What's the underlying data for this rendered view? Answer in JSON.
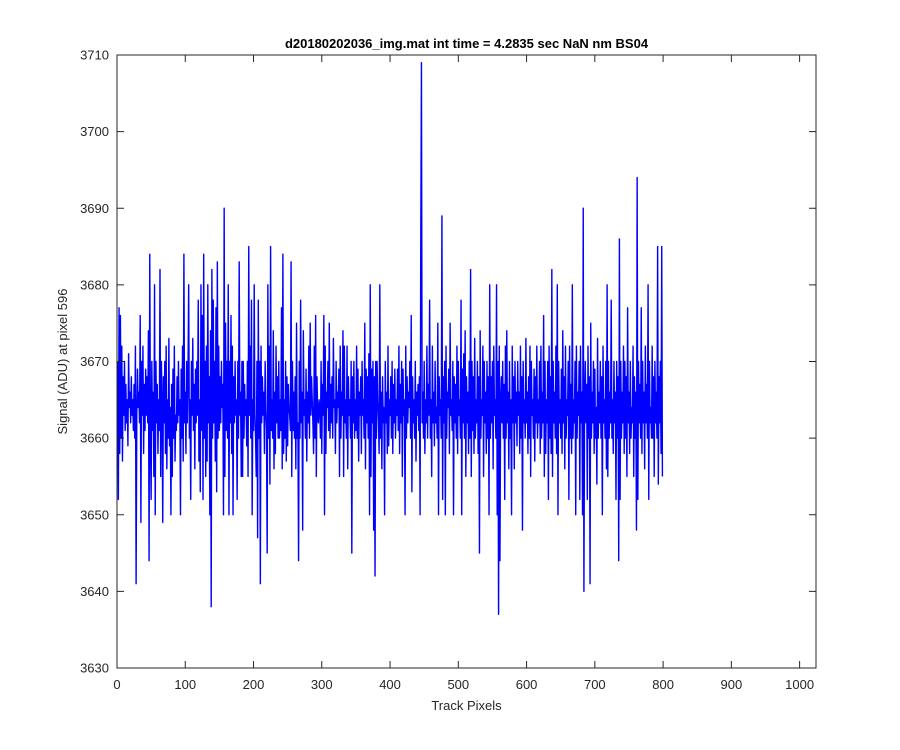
{
  "chart_data": {
    "type": "line",
    "title": "d20180202036_img.mat int time = 4.2835 sec  NaN nm BS04",
    "xlabel": "Track Pixels",
    "ylabel": "Signal (ADU) at pixel 596",
    "xlim": [
      0,
      1024
    ],
    "ylim": [
      3630,
      3710
    ],
    "x_ticks": [
      0,
      100,
      200,
      300,
      400,
      500,
      600,
      700,
      800,
      900,
      1000
    ],
    "y_ticks": [
      3630,
      3640,
      3650,
      3660,
      3670,
      3680,
      3690,
      3700,
      3710
    ],
    "grid": false,
    "line_color": "#0000ff",
    "series": [
      {
        "x_start": 1,
        "x_step": 1,
        "n_points": 1024,
        "values": [
          3670,
          3652,
          3677,
          3658,
          3676,
          3660,
          3672,
          3657,
          3668,
          3663,
          3670,
          3661,
          3667,
          3662,
          3665,
          3659,
          3671,
          3664,
          3666,
          3662,
          3668,
          3663,
          3665,
          3661,
          3667,
          3660,
          3672,
          3641,
          3663,
          3669,
          3664,
          3666,
          3662,
          3676,
          3649,
          3670,
          3663,
          3672,
          3658,
          3667,
          3661,
          3669,
          3663,
          3668,
          3662,
          3674,
          3644,
          3684,
          3660,
          3652,
          3670,
          3661,
          3666,
          3655,
          3680,
          3650,
          3670,
          3662,
          3667,
          3658,
          3665,
          3661,
          3682,
          3655,
          3670,
          3665,
          3649,
          3668,
          3662,
          3670,
          3658,
          3672,
          3656,
          3665,
          3660,
          3673,
          3659,
          3664,
          3650,
          3667,
          3655,
          3669,
          3660,
          3672,
          3657,
          3663,
          3661,
          3668,
          3662,
          3670,
          3663,
          3665,
          3650,
          3669,
          3660,
          3672,
          3657,
          3684,
          3662,
          3666,
          3658,
          3670,
          3662,
          3668,
          3680,
          3660,
          3665,
          3652,
          3670,
          3663,
          3673,
          3661,
          3667,
          3656,
          3669,
          3662,
          3670,
          3663,
          3678,
          3657,
          3665,
          3653,
          3680,
          3661,
          3676,
          3652,
          3684,
          3660,
          3670,
          3655,
          3672,
          3657,
          3680,
          3662,
          3668,
          3650,
          3674,
          3638,
          3682,
          3660,
          3678,
          3662,
          3670,
          3657,
          3677,
          3653,
          3683,
          3660,
          3672,
          3661,
          3668,
          3662,
          3670,
          3664,
          3667,
          3650,
          3690,
          3655,
          3675,
          3661,
          3670,
          3660,
          3680,
          3650,
          3670,
          3662,
          3676,
          3658,
          3672,
          3650,
          3668,
          3662,
          3670,
          3663,
          3665,
          3652,
          3670,
          3660,
          3683,
          3663,
          3666,
          3655,
          3670,
          3655,
          3670,
          3660,
          3667,
          3663,
          3665,
          3659,
          3670,
          3655,
          3685,
          3663,
          3672,
          3660,
          3678,
          3650,
          3665,
          3661,
          3680,
          3663,
          3660,
          3655,
          3670,
          3647,
          3678,
          3660,
          3670,
          3641,
          3672,
          3662,
          3668,
          3663,
          3666,
          3658,
          3670,
          3664,
          3661,
          3645,
          3680,
          3660,
          3672,
          3654,
          3685,
          3661,
          3665,
          3660,
          3674,
          3656,
          3666,
          3658,
          3672,
          3662,
          3668,
          3660,
          3670,
          3660,
          3665,
          3661,
          3677,
          3656,
          3684,
          3658,
          3665,
          3660,
          3670,
          3657,
          3668,
          3659,
          3667,
          3664,
          3663,
          3661,
          3683,
          3655,
          3670,
          3661,
          3666,
          3660,
          3668,
          3656,
          3675,
          3660,
          3662,
          3644,
          3670,
          3660,
          3678,
          3662,
          3666,
          3648,
          3674,
          3663,
          3665,
          3660,
          3669,
          3657,
          3666,
          3662,
          3672,
          3660,
          3675,
          3663,
          3668,
          3665,
          3662,
          3658,
          3672,
          3660,
          3676,
          3655,
          3668,
          3663,
          3662,
          3665,
          3664,
          3660,
          3670,
          3658,
          3667,
          3663,
          3676,
          3650,
          3672,
          3658,
          3666,
          3664,
          3670,
          3661,
          3675,
          3660,
          3667,
          3662,
          3668,
          3660,
          3673,
          3664,
          3665,
          3658,
          3670,
          3662,
          3666,
          3664,
          3669,
          3655,
          3672,
          3660,
          3666,
          3663,
          3674,
          3655,
          3672,
          3662,
          3665,
          3660,
          3672,
          3656,
          3668,
          3663,
          3665,
          3660,
          3670,
          3645,
          3668,
          3662,
          3670,
          3660,
          3665,
          3661,
          3672,
          3660,
          3669,
          3657,
          3666,
          3663,
          3668,
          3658,
          3670,
          3663,
          3665,
          3660,
          3675,
          3656,
          3669,
          3662,
          3668,
          3660,
          3671,
          3650,
          3680,
          3655,
          3669,
          3662,
          3670,
          3648,
          3668,
          3642,
          3670,
          3660,
          3670,
          3665,
          3662,
          3658,
          3680,
          3660,
          3666,
          3656,
          3668,
          3662,
          3664,
          3650,
          3670,
          3662,
          3666,
          3658,
          3672,
          3659,
          3665,
          3663,
          3668,
          3660,
          3670,
          3658,
          3667,
          3662,
          3669,
          3660,
          3665,
          3663,
          3669,
          3661,
          3672,
          3658,
          3667,
          3662,
          3670,
          3655,
          3669,
          3663,
          3665,
          3650,
          3672,
          3660,
          3668,
          3662,
          3666,
          3664,
          3670,
          3660,
          3676,
          3653,
          3668,
          3662,
          3665,
          3660,
          3670,
          3657,
          3666,
          3663,
          3667,
          3661,
          3668,
          3650,
          3685,
          3709,
          3662,
          3666,
          3660,
          3670,
          3658,
          3665,
          3662,
          3672,
          3660,
          3667,
          3663,
          3678,
          3660,
          3665,
          3655,
          3672,
          3662,
          3666,
          3659,
          3670,
          3662,
          3664,
          3660,
          3675,
          3650,
          3668,
          3663,
          3665,
          3660,
          3689,
          3652,
          3668,
          3662,
          3670,
          3650,
          3672,
          3660,
          3666,
          3664,
          3669,
          3658,
          3675,
          3663,
          3665,
          3661,
          3670,
          3650,
          3668,
          3662,
          3667,
          3660,
          3672,
          3658,
          3670,
          3663,
          3665,
          3660,
          3678,
          3650,
          3669,
          3662,
          3671,
          3660,
          3674,
          3655,
          3668,
          3662,
          3666,
          3658,
          3670,
          3660,
          3682,
          3655,
          3670,
          3661,
          3668,
          3658,
          3673,
          3660,
          3665,
          3662,
          3670,
          3658,
          3668,
          3645,
          3674,
          3660,
          3665,
          3663,
          3672,
          3655,
          3670,
          3662,
          3666,
          3658,
          3670,
          3660,
          3668,
          3650,
          3680,
          3660,
          3668,
          3662,
          3670,
          3656,
          3672,
          3663,
          3665,
          3660,
          3680,
          3650,
          3670,
          3637,
          3672,
          3644,
          3665,
          3668,
          3662,
          3670,
          3660,
          3667,
          3652,
          3672,
          3660,
          3674,
          3662,
          3666,
          3656,
          3670,
          3660,
          3665,
          3650,
          3672,
          3662,
          3668,
          3656,
          3670,
          3662,
          3666,
          3659,
          3670,
          3663,
          3666,
          3658,
          3672,
          3660,
          3668,
          3648,
          3670,
          3662,
          3665,
          3660,
          3673,
          3662,
          3666,
          3658,
          3668,
          3660,
          3672,
          3655,
          3670,
          3663,
          3665,
          3660,
          3669,
          3657,
          3668,
          3662,
          3672,
          3660,
          3665,
          3662,
          3670,
          3658,
          3672,
          3660,
          3666,
          3662,
          3676,
          3655,
          3670,
          3658,
          3665,
          3662,
          3670,
          3652,
          3672,
          3660,
          3668,
          3658,
          3682,
          3655,
          3670,
          3662,
          3666,
          3660,
          3672,
          3658,
          3680,
          3650,
          3670,
          3662,
          3665,
          3660,
          3669,
          3658,
          3674,
          3662,
          3668,
          3656,
          3672,
          3660,
          3665,
          3663,
          3670,
          3652,
          3672,
          3660,
          3667,
          3658,
          3680,
          3660,
          3665,
          3662,
          3670,
          3650,
          3672,
          3660,
          3666,
          3663,
          3670,
          3652,
          3672,
          3662,
          3666,
          3650,
          3690,
          3640,
          3665,
          3670,
          3662,
          3667,
          3652,
          3672,
          3660,
          3668,
          3641,
          3675,
          3660,
          3666,
          3662,
          3670,
          3658,
          3669,
          3660,
          3664,
          3654,
          3673,
          3660,
          3666,
          3662,
          3670,
          3660,
          3668,
          3650,
          3672,
          3662,
          3665,
          3660,
          3670,
          3656,
          3680,
          3655,
          3670,
          3660,
          3666,
          3662,
          3678,
          3660,
          3665,
          3658,
          3670,
          3662,
          3666,
          3652,
          3670,
          3660,
          3668,
          3644,
          3686,
          3652,
          3670,
          3660,
          3666,
          3662,
          3672,
          3658,
          3670,
          3660,
          3668,
          3655,
          3677,
          3662,
          3666,
          3658,
          3670,
          3660,
          3664,
          3662,
          3672,
          3655,
          3668,
          3660,
          3666,
          3648,
          3694,
          3652,
          3670,
          3662,
          3667,
          3660,
          3677,
          3658,
          3670,
          3662,
          3666,
          3656,
          3672,
          3662,
          3667,
          3660,
          3680,
          3652,
          3670,
          3662,
          3664,
          3660,
          3672,
          3660,
          3668,
          3655,
          3670,
          3662,
          3666,
          3660,
          3685,
          3654,
          3668,
          3662,
          3670,
          3658,
          3685,
          3655
        ]
      }
    ]
  }
}
